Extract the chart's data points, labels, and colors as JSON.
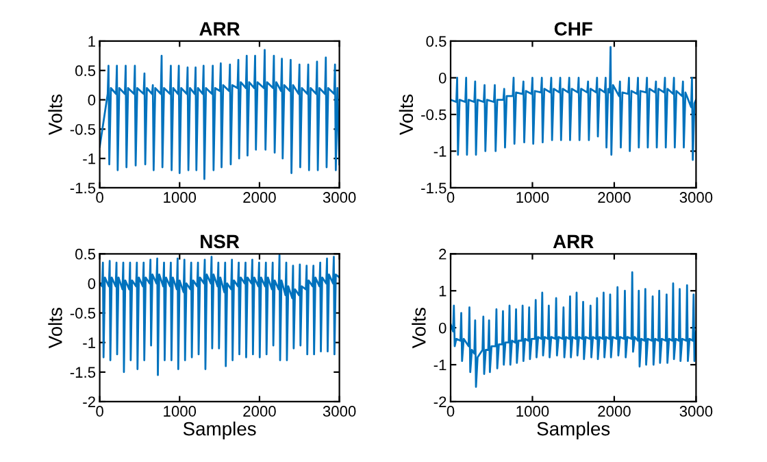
{
  "chart_data": [
    {
      "type": "line",
      "title": "ARR",
      "ylabel": "Volts",
      "xlim": [
        0,
        3000
      ],
      "xticks": [
        0,
        1000,
        2000,
        3000
      ],
      "ylim": [
        -1.5,
        1
      ],
      "yticks": [
        -1.5,
        -1,
        -0.5,
        0,
        0.5,
        1
      ],
      "series": [
        {
          "color": "#0072bd",
          "x": [
            0,
            100,
            110,
            120,
            140,
            205,
            215,
            225,
            245,
            315,
            325,
            335,
            355,
            430,
            440,
            450,
            470,
            550,
            560,
            570,
            590,
            655,
            665,
            675,
            695,
            765,
            775,
            785,
            805,
            880,
            890,
            900,
            920,
            980,
            990,
            1000,
            1020,
            1090,
            1100,
            1110,
            1130,
            1190,
            1200,
            1210,
            1230,
            1290,
            1300,
            1310,
            1330,
            1405,
            1415,
            1425,
            1445,
            1505,
            1515,
            1525,
            1545,
            1620,
            1630,
            1640,
            1660,
            1725,
            1735,
            1745,
            1765,
            1830,
            1840,
            1850,
            1870,
            1935,
            1945,
            1955,
            1975,
            2055,
            2065,
            2075,
            2095,
            2170,
            2180,
            2190,
            2210,
            2270,
            2280,
            2290,
            2310,
            2380,
            2390,
            2400,
            2420,
            2490,
            2500,
            2510,
            2530,
            2600,
            2610,
            2620,
            2640,
            2710,
            2720,
            2730,
            2750,
            2820,
            2830,
            2840,
            2860,
            2935,
            2945,
            2955,
            2975,
            3000
          ],
          "values": [
            -0.8,
            0.1,
            0.58,
            -1.1,
            0.2,
            0.1,
            0.58,
            -1.2,
            0.2,
            0.1,
            0.58,
            -1.15,
            0.2,
            0.1,
            0.58,
            -1.12,
            0.2,
            0.1,
            0.45,
            -1.1,
            0.2,
            0.1,
            0.25,
            -1.2,
            0.2,
            0.1,
            0.75,
            -1.15,
            0.2,
            0.1,
            0.58,
            -1.2,
            0.2,
            0.1,
            0.58,
            -1.25,
            0.2,
            0.1,
            0.55,
            -1.2,
            0.2,
            0.1,
            0.55,
            -1.2,
            0.2,
            0.1,
            0.58,
            -1.35,
            0.2,
            0.1,
            0.58,
            -1.2,
            0.2,
            0.15,
            0.62,
            -1.15,
            0.25,
            0.15,
            0.6,
            -1.1,
            0.25,
            0.2,
            0.68,
            -1.0,
            0.3,
            0.2,
            0.75,
            -0.95,
            0.3,
            0.2,
            0.75,
            -0.85,
            0.3,
            0.2,
            0.85,
            -0.85,
            0.3,
            0.2,
            0.75,
            -0.9,
            0.3,
            0.15,
            0.7,
            -1.0,
            0.25,
            0.15,
            0.68,
            -1.25,
            0.25,
            0.1,
            0.6,
            -1.15,
            0.2,
            0.1,
            0.6,
            -1.2,
            0.2,
            0.1,
            0.65,
            -1.2,
            0.2,
            0.1,
            0.72,
            -1.15,
            0.2,
            0.1,
            0.6,
            -1.2,
            0.2,
            -1.1
          ]
        }
      ]
    },
    {
      "type": "line",
      "title": "CHF",
      "ylabel": "Volts",
      "xlim": [
        0,
        3000
      ],
      "xticks": [
        0,
        1000,
        2000,
        3000
      ],
      "ylim": [
        -1.5,
        0.5
      ],
      "yticks": [
        -1.5,
        -1,
        -0.5,
        0,
        0.5
      ],
      "series": [
        {
          "color": "#0072bd",
          "x": [
            0,
            70,
            80,
            90,
            110,
            180,
            190,
            200,
            220,
            290,
            300,
            310,
            330,
            405,
            415,
            425,
            445,
            530,
            540,
            550,
            570,
            645,
            655,
            665,
            685,
            760,
            770,
            780,
            800,
            880,
            890,
            900,
            920,
            990,
            1000,
            1010,
            1030,
            1105,
            1115,
            1125,
            1145,
            1220,
            1230,
            1240,
            1260,
            1330,
            1340,
            1350,
            1370,
            1440,
            1450,
            1460,
            1480,
            1555,
            1565,
            1575,
            1595,
            1670,
            1680,
            1690,
            1710,
            1780,
            1790,
            1800,
            1820,
            1885,
            1895,
            1905,
            1925,
            1945,
            1955,
            1965,
            1985,
            2060,
            2070,
            2080,
            2100,
            2170,
            2180,
            2190,
            2210,
            2280,
            2290,
            2300,
            2320,
            2390,
            2400,
            2410,
            2430,
            2500,
            2510,
            2520,
            2540,
            2610,
            2620,
            2630,
            2650,
            2720,
            2730,
            2740,
            2760,
            2830,
            2840,
            2850,
            2870,
            2940,
            2950,
            2960,
            2980,
            3000
          ],
          "values": [
            -0.3,
            -0.33,
            0.0,
            -1.05,
            -0.3,
            -0.33,
            0.0,
            -1.05,
            -0.3,
            -0.33,
            -0.05,
            -1.05,
            -0.3,
            -0.33,
            -0.1,
            -1.0,
            -0.3,
            -0.33,
            -0.1,
            -1.0,
            -0.3,
            -0.3,
            -0.15,
            -0.95,
            -0.25,
            -0.25,
            0.0,
            -0.9,
            -0.2,
            -0.22,
            -0.05,
            -0.88,
            -0.18,
            -0.22,
            0.0,
            -0.9,
            -0.18,
            -0.2,
            0.0,
            -0.88,
            -0.15,
            -0.2,
            0.0,
            -0.85,
            -0.15,
            -0.2,
            0.0,
            -0.85,
            -0.15,
            -0.2,
            0.0,
            -0.85,
            -0.15,
            -0.2,
            0.0,
            -0.85,
            -0.15,
            -0.2,
            -0.05,
            -0.85,
            -0.15,
            -0.2,
            0.0,
            -0.8,
            -0.15,
            -0.2,
            0.0,
            -0.95,
            -0.15,
            -0.2,
            0.42,
            -1.05,
            -0.1,
            -0.25,
            -0.05,
            -0.95,
            -0.2,
            -0.22,
            0.0,
            -1.0,
            -0.18,
            -0.22,
            0.0,
            -0.95,
            -0.18,
            -0.2,
            0.0,
            -0.95,
            -0.15,
            -0.2,
            -0.05,
            -0.95,
            -0.15,
            -0.2,
            0.0,
            -0.95,
            -0.15,
            -0.22,
            0.0,
            -0.95,
            -0.18,
            -0.25,
            -0.05,
            -0.95,
            -0.2,
            -0.4,
            0.0,
            -1.12,
            -0.35,
            -0.3
          ]
        }
      ]
    },
    {
      "type": "line",
      "title": "NSR",
      "xlabel": "Samples",
      "ylabel": "Volts",
      "xlim": [
        0,
        3000
      ],
      "xticks": [
        0,
        1000,
        2000,
        3000
      ],
      "ylim": [
        -2,
        0.5
      ],
      "yticks": [
        -2,
        -1.5,
        -1,
        -0.5,
        0,
        0.5
      ],
      "series": [
        {
          "color": "#0072bd",
          "x": [
            0,
            30,
            40,
            48,
            65,
            115,
            125,
            133,
            150,
            200,
            210,
            218,
            235,
            285,
            295,
            303,
            320,
            370,
            380,
            388,
            405,
            455,
            465,
            473,
            490,
            540,
            550,
            558,
            575,
            625,
            635,
            643,
            660,
            710,
            720,
            728,
            745,
            795,
            805,
            813,
            830,
            880,
            890,
            898,
            915,
            965,
            975,
            983,
            1000,
            1050,
            1060,
            1068,
            1085,
            1135,
            1145,
            1153,
            1170,
            1220,
            1230,
            1238,
            1255,
            1305,
            1315,
            1323,
            1340,
            1390,
            1400,
            1408,
            1425,
            1475,
            1485,
            1493,
            1510,
            1560,
            1570,
            1578,
            1595,
            1645,
            1655,
            1663,
            1680,
            1730,
            1740,
            1748,
            1765,
            1815,
            1825,
            1833,
            1850,
            1900,
            1910,
            1918,
            1935,
            1985,
            1995,
            2003,
            2020,
            2070,
            2080,
            2088,
            2105,
            2155,
            2165,
            2173,
            2190,
            2240,
            2250,
            2258,
            2275,
            2325,
            2335,
            2343,
            2360,
            2410,
            2420,
            2428,
            2445,
            2495,
            2505,
            2513,
            2530,
            2580,
            2590,
            2598,
            2615,
            2665,
            2675,
            2683,
            2700,
            2750,
            2760,
            2768,
            2785,
            2835,
            2845,
            2853,
            2870,
            2920,
            2930,
            2938,
            2955,
            3000
          ],
          "values": [
            0.0,
            -0.05,
            0.35,
            -1.25,
            0.1,
            -0.05,
            0.38,
            -1.3,
            0.1,
            -0.05,
            0.35,
            -1.2,
            0.1,
            -0.1,
            0.35,
            -1.5,
            0.05,
            -0.1,
            0.35,
            -1.3,
            0.05,
            -0.05,
            0.35,
            -1.45,
            0.1,
            -0.05,
            0.35,
            -1.3,
            0.1,
            0.0,
            0.4,
            -1.05,
            0.15,
            0.0,
            0.42,
            -1.55,
            0.15,
            -0.05,
            0.35,
            -1.3,
            0.1,
            -0.05,
            0.35,
            -1.3,
            0.1,
            -0.1,
            0.42,
            -1.45,
            0.05,
            -0.15,
            0.4,
            -1.3,
            0.0,
            -0.1,
            0.35,
            -1.25,
            0.05,
            -0.05,
            0.35,
            -1.2,
            0.1,
            0.0,
            0.4,
            -1.45,
            0.15,
            0.0,
            0.45,
            -1.1,
            0.15,
            -0.05,
            0.35,
            -1.1,
            0.1,
            -0.15,
            0.35,
            -1.4,
            0.0,
            -0.1,
            0.4,
            -1.3,
            0.05,
            -0.05,
            0.35,
            -1.2,
            0.1,
            0.0,
            0.35,
            -1.25,
            0.1,
            0.0,
            0.4,
            -1.2,
            0.1,
            -0.05,
            0.35,
            -1.25,
            0.1,
            -0.05,
            0.35,
            -1.2,
            0.1,
            -0.1,
            0.35,
            -1.05,
            0.05,
            -0.1,
            0.48,
            -1.3,
            0.05,
            -0.2,
            0.35,
            -1.3,
            -0.05,
            -0.25,
            0.3,
            -1.1,
            -0.1,
            -0.2,
            0.32,
            -1.05,
            -0.05,
            -0.1,
            0.3,
            -1.2,
            0.05,
            -0.05,
            0.3,
            -1.2,
            0.1,
            -0.05,
            0.35,
            -1.15,
            0.1,
            0.0,
            0.42,
            -1.15,
            0.15,
            0.0,
            0.45,
            -1.2,
            0.15,
            0.1
          ]
        }
      ]
    },
    {
      "type": "line",
      "title": "ARR",
      "xlabel": "Samples",
      "ylabel": "Volts",
      "xlim": [
        0,
        3000
      ],
      "xticks": [
        0,
        1000,
        2000,
        3000
      ],
      "ylim": [
        -2,
        2
      ],
      "yticks": [
        -2,
        -1,
        0,
        1,
        2
      ],
      "series": [
        {
          "color": "#0072bd",
          "x": [
            0,
            30,
            40,
            50,
            70,
            120,
            130,
            140,
            160,
            220,
            230,
            240,
            260,
            290,
            300,
            310,
            330,
            390,
            400,
            410,
            430,
            460,
            470,
            480,
            500,
            550,
            560,
            570,
            590,
            630,
            640,
            650,
            670,
            710,
            720,
            730,
            750,
            790,
            800,
            810,
            830,
            870,
            880,
            890,
            910,
            950,
            960,
            970,
            990,
            1030,
            1040,
            1050,
            1070,
            1110,
            1120,
            1130,
            1150,
            1190,
            1200,
            1210,
            1230,
            1280,
            1290,
            1300,
            1320,
            1370,
            1380,
            1390,
            1410,
            1450,
            1460,
            1470,
            1490,
            1530,
            1540,
            1550,
            1570,
            1610,
            1620,
            1630,
            1650,
            1700,
            1710,
            1720,
            1740,
            1780,
            1790,
            1800,
            1820,
            1860,
            1870,
            1880,
            1900,
            1940,
            1950,
            1960,
            1980,
            2030,
            2040,
            2050,
            2070,
            2120,
            2130,
            2140,
            2160,
            2210,
            2220,
            2230,
            2250,
            2290,
            2300,
            2310,
            2330,
            2370,
            2380,
            2390,
            2410,
            2460,
            2470,
            2480,
            2500,
            2540,
            2550,
            2560,
            2580,
            2630,
            2640,
            2650,
            2670,
            2710,
            2720,
            2730,
            2750,
            2790,
            2800,
            2810,
            2830,
            2880,
            2890,
            2900,
            2920,
            2960,
            2970,
            2980,
            2995,
            3000
          ],
          "values": [
            0.1,
            -0.1,
            0.6,
            -0.5,
            -0.3,
            -0.35,
            0.4,
            -0.9,
            -0.3,
            -0.5,
            0.55,
            -1.2,
            -0.6,
            -0.7,
            0.2,
            -1.6,
            -0.8,
            -0.6,
            0.3,
            -1.25,
            -0.6,
            -0.6,
            0.2,
            -1.2,
            -0.5,
            -0.5,
            0.5,
            -1.1,
            -0.45,
            -0.45,
            0.45,
            -1.0,
            -0.4,
            -0.4,
            0.6,
            -1.0,
            -0.35,
            -0.4,
            0.5,
            -0.95,
            -0.35,
            -0.35,
            0.6,
            -0.9,
            -0.3,
            -0.35,
            0.55,
            -0.85,
            -0.3,
            -0.3,
            0.75,
            -0.8,
            -0.25,
            -0.3,
            0.95,
            -0.75,
            -0.25,
            -0.3,
            0.6,
            -0.8,
            -0.25,
            -0.3,
            0.8,
            -0.75,
            -0.25,
            -0.3,
            0.55,
            -0.8,
            -0.25,
            -0.3,
            0.85,
            -0.8,
            -0.25,
            -0.3,
            0.95,
            -0.75,
            -0.25,
            -0.3,
            0.7,
            -0.85,
            -0.25,
            -0.3,
            0.6,
            -0.8,
            -0.25,
            -0.3,
            0.8,
            -0.85,
            -0.25,
            -0.3,
            0.95,
            -0.8,
            -0.25,
            -0.3,
            0.9,
            -0.8,
            -0.25,
            -0.3,
            1.1,
            -0.75,
            -0.25,
            -0.3,
            1.0,
            -0.8,
            -0.25,
            -0.3,
            1.5,
            -0.65,
            -0.25,
            -0.35,
            1.0,
            -1.05,
            -0.3,
            -0.35,
            1.05,
            -1.0,
            -0.3,
            -0.35,
            0.85,
            -1.0,
            -0.3,
            -0.35,
            1.0,
            -0.95,
            -0.3,
            -0.35,
            0.9,
            -0.95,
            -0.3,
            -0.35,
            1.2,
            -0.85,
            -0.3,
            -0.35,
            1.05,
            -0.9,
            -0.3,
            -0.35,
            1.15,
            -0.9,
            -0.3,
            -0.35,
            0.9,
            -0.9,
            -0.3,
            -0.1
          ]
        }
      ]
    }
  ]
}
